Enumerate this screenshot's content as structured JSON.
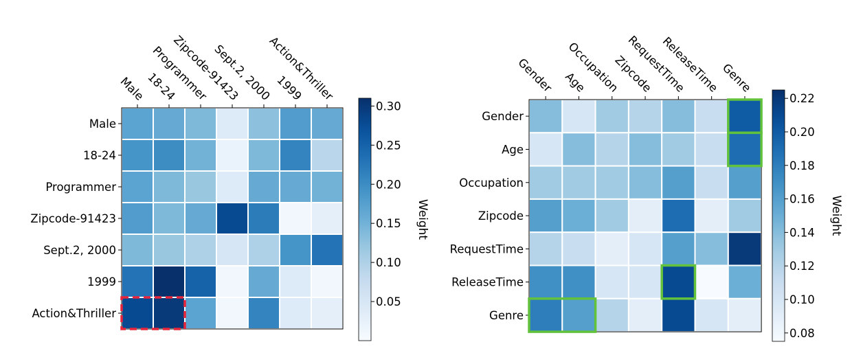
{
  "chart_data": [
    {
      "type": "heatmap",
      "row_labels": [
        "Male",
        "18-24",
        "Programmer",
        "Zipcode-91423",
        "Sept.2, 2000",
        "1999",
        "Action&Thriller"
      ],
      "col_labels": [
        "Male",
        "18-24",
        "Programmer",
        "Zipcode-91423",
        "Sept.2, 2000",
        "1999",
        "Action&Thriller"
      ],
      "values": [
        [
          0.17,
          0.16,
          0.14,
          0.04,
          0.13,
          0.18,
          0.16
        ],
        [
          0.19,
          0.2,
          0.15,
          0.02,
          0.14,
          0.21,
          0.09
        ],
        [
          0.17,
          0.14,
          0.12,
          0.04,
          0.16,
          0.16,
          0.15
        ],
        [
          0.18,
          0.14,
          0.16,
          0.28,
          0.22,
          0.01,
          0.03
        ],
        [
          0.14,
          0.12,
          0.1,
          0.05,
          0.1,
          0.19,
          0.23
        ],
        [
          0.23,
          0.31,
          0.25,
          0.01,
          0.16,
          0.04,
          0.01
        ],
        [
          0.28,
          0.3,
          0.17,
          0.01,
          0.21,
          0.04,
          0.03
        ]
      ],
      "colorbar": {
        "label": "Weight",
        "vmin": 0.0,
        "vmax": 0.31,
        "ticks": [
          0.05,
          0.1,
          0.15,
          0.2,
          0.25,
          0.3
        ],
        "tick_labels": [
          "0.05",
          "0.10",
          "0.15",
          "0.20",
          "0.25",
          "0.30"
        ]
      },
      "highlights": [
        {
          "row": 6,
          "col_start": 0,
          "col_end": 1,
          "style": "dashed",
          "color": "#e8253b"
        }
      ]
    },
    {
      "type": "heatmap",
      "row_labels": [
        "Gender",
        "Age",
        "Occupation",
        "Zipcode",
        "RequestTime",
        "ReleaseTime",
        "Genre"
      ],
      "col_labels": [
        "Gender",
        "Age",
        "Occupation",
        "Zipcode",
        "RequestTime",
        "ReleaseTime",
        "Genre"
      ],
      "values": [
        [
          0.14,
          0.1,
          0.13,
          0.12,
          0.14,
          0.11,
          0.2
        ],
        [
          0.1,
          0.14,
          0.12,
          0.14,
          0.13,
          0.11,
          0.19
        ],
        [
          0.13,
          0.13,
          0.13,
          0.14,
          0.16,
          0.11,
          0.16
        ],
        [
          0.16,
          0.15,
          0.13,
          0.09,
          0.19,
          0.09,
          0.13
        ],
        [
          0.12,
          0.11,
          0.09,
          0.1,
          0.16,
          0.14,
          0.22
        ],
        [
          0.17,
          0.17,
          0.1,
          0.1,
          0.21,
          0.07,
          0.15
        ],
        [
          0.18,
          0.16,
          0.12,
          0.09,
          0.21,
          0.1,
          0.09
        ]
      ],
      "colorbar": {
        "label": "Weight",
        "vmin": 0.075,
        "vmax": 0.225,
        "ticks": [
          0.08,
          0.1,
          0.12,
          0.14,
          0.16,
          0.18,
          0.2,
          0.22
        ],
        "tick_labels": [
          "0.08",
          "0.10",
          "0.12",
          "0.14",
          "0.16",
          "0.18",
          "0.20",
          "0.22"
        ]
      },
      "highlights": [
        {
          "row": 0,
          "col_start": 6,
          "col_end": 6,
          "style": "solid",
          "color": "#63c23c"
        },
        {
          "row": 1,
          "col_start": 6,
          "col_end": 6,
          "style": "solid",
          "color": "#63c23c"
        },
        {
          "row": 5,
          "col_start": 4,
          "col_end": 4,
          "style": "solid",
          "color": "#63c23c"
        },
        {
          "row": 6,
          "col_start": 0,
          "col_end": 1,
          "style": "solid",
          "color": "#63c23c"
        }
      ]
    }
  ]
}
